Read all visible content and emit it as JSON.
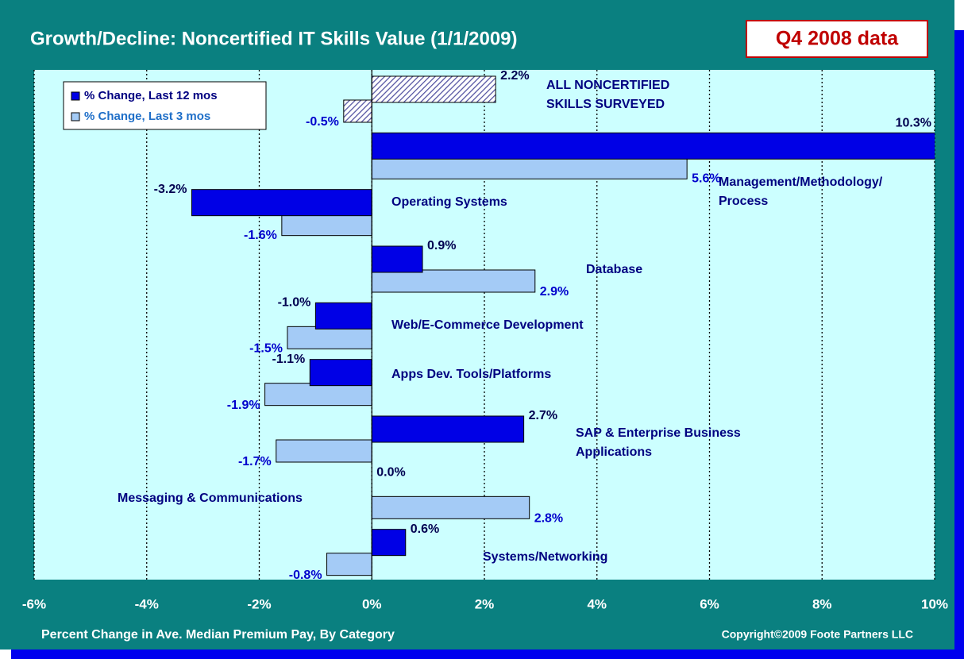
{
  "chart_data": {
    "type": "hbar",
    "title": "Growth/Decline: Noncertified IT Skills Value (1/1/2009)",
    "badge": "Q4 2008 data",
    "xlabel": "Percent Change in Ave. Median Premium Pay, By Category",
    "copyright": "Copyright©2009 Foote Partners LLC",
    "categories": [
      "ALL NONCERTIFIED\nSKILLS SURVEYED",
      "Management/Methodology/\nProcess",
      "Operating Systems",
      "Database",
      "Web/E-Commerce Development",
      "Apps Dev. Tools/Platforms",
      "SAP & Enterprise Business\nApplications",
      "Messaging & Communications",
      "Systems/Networking"
    ],
    "series": [
      {
        "name": "% Change, Last 12 mos",
        "color": "#0000e6",
        "values": [
          2.2,
          10.3,
          -3.2,
          0.9,
          -1.0,
          -1.1,
          2.7,
          0.0,
          0.6
        ],
        "value_labels": [
          "2.2%",
          "10.3%",
          "-3.2%",
          "0.9%",
          "-1.0%",
          "-1.1%",
          "2.7%",
          "0.0%",
          "0.6%"
        ]
      },
      {
        "name": "% Change, Last 3 mos",
        "color": "#a4cbf6",
        "values": [
          -0.5,
          5.6,
          -1.6,
          2.9,
          -1.5,
          -1.9,
          -1.7,
          2.8,
          -0.8
        ],
        "value_labels": [
          "-0.5%",
          "5.6%",
          "-1.6%",
          "2.9%",
          "-1.5%",
          "-1.9%",
          "-1.7%",
          "2.8%",
          "-0.8%"
        ]
      }
    ],
    "xlim": [
      -6,
      10
    ],
    "xticks": [
      {
        "value": -6,
        "label": "-6%"
      },
      {
        "value": -4,
        "label": "-4%"
      },
      {
        "value": -2,
        "label": "-2%"
      },
      {
        "value": 0,
        "label": "0%"
      },
      {
        "value": 2,
        "label": "2%"
      },
      {
        "value": 4,
        "label": "4%"
      },
      {
        "value": 6,
        "label": "6%"
      },
      {
        "value": 8,
        "label": "8%"
      },
      {
        "value": 10,
        "label": "10%"
      }
    ],
    "grid": true,
    "legend": "top-left"
  }
}
